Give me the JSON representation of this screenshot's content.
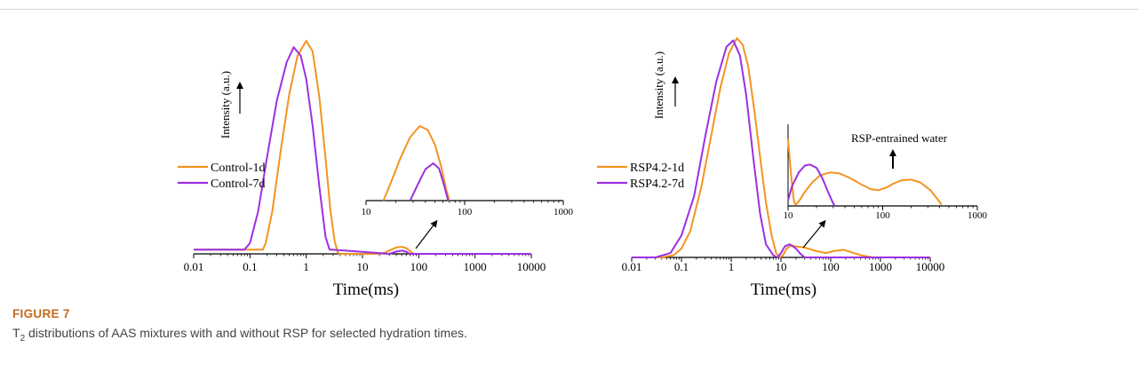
{
  "figure": {
    "label": "FIGURE 7",
    "caption_prefix": "T",
    "caption_sub": "2",
    "caption_rest": " distributions of AAS mixtures with and without RSP for selected hydration times."
  },
  "colors": {
    "orange": "#f39420",
    "purple": "#9b30e0",
    "axis": "#000000"
  },
  "chart_data": [
    {
      "type": "line",
      "title": "",
      "xlabel": "Time(ms)",
      "ylabel": "Intensity (a.u.)",
      "xscale": "log",
      "xlim": [
        0.01,
        10000
      ],
      "xticks": [
        "0.01",
        "0.1",
        "1",
        "10",
        "100",
        "1000",
        "10000"
      ],
      "grid": false,
      "legend_position": "middle-left",
      "series": [
        {
          "name": "Control-1d",
          "color": "orange",
          "x": [
            0.01,
            0.17,
            0.19,
            0.25,
            0.35,
            0.5,
            0.7,
            1.0,
            1.3,
            1.7,
            2.2,
            2.7,
            3.2,
            3.6,
            3.9,
            20,
            25,
            30,
            40,
            50,
            60,
            70,
            80,
            10000
          ],
          "y": [
            0.02,
            0.02,
            0.05,
            0.2,
            0.48,
            0.75,
            0.93,
            1.0,
            0.95,
            0.74,
            0.45,
            0.2,
            0.06,
            0.01,
            0.0,
            0.0,
            0.006,
            0.016,
            0.03,
            0.033,
            0.027,
            0.013,
            0.0,
            0.0
          ]
        },
        {
          "name": "Control-7d",
          "color": "purple",
          "x": [
            0.01,
            0.08,
            0.1,
            0.14,
            0.2,
            0.3,
            0.45,
            0.6,
            0.8,
            1.0,
            1.3,
            1.7,
            2.2,
            2.6,
            2.8,
            30,
            35,
            40,
            50,
            60,
            70,
            10000
          ],
          "y": [
            0.02,
            0.02,
            0.05,
            0.2,
            0.45,
            0.72,
            0.9,
            0.97,
            0.93,
            0.82,
            0.6,
            0.32,
            0.08,
            0.02,
            0.02,
            0.0,
            0.006,
            0.011,
            0.015,
            0.01,
            0.0,
            0.0
          ]
        }
      ],
      "annotations": [
        "arrow"
      ]
    },
    {
      "type": "line",
      "title": "",
      "xlabel": "Time(ms)",
      "ylabel": "Intensity (a.u.)",
      "xscale": "log",
      "xlim": [
        10,
        1000
      ],
      "xticks": [
        "10",
        "100",
        "1000"
      ],
      "inset": true,
      "series": [
        {
          "name": "Control-1d",
          "color": "orange",
          "x": [
            15,
            18,
            22,
            28,
            35,
            42,
            50,
            58,
            65,
            70
          ],
          "y": [
            0.0,
            0.25,
            0.55,
            0.85,
            1.0,
            0.95,
            0.75,
            0.45,
            0.15,
            0.0
          ]
        },
        {
          "name": "Control-7d",
          "color": "purple",
          "x": [
            28,
            33,
            40,
            48,
            55,
            62,
            68
          ],
          "y": [
            0.0,
            0.2,
            0.42,
            0.5,
            0.43,
            0.2,
            0.0
          ]
        }
      ]
    },
    {
      "type": "line",
      "title": "",
      "xlabel": "Time(ms)",
      "ylabel": "Intensity (a.u.)",
      "xscale": "log",
      "xlim": [
        0.01,
        10000
      ],
      "xticks": [
        "0.01",
        "0.1",
        "1",
        "10",
        "100",
        "1000",
        "10000"
      ],
      "grid": false,
      "legend_position": "middle-left",
      "series": [
        {
          "name": "RSP4.2-1d",
          "color": "orange",
          "x": [
            0.01,
            0.04,
            0.07,
            0.1,
            0.15,
            0.25,
            0.4,
            0.6,
            0.9,
            1.3,
            1.7,
            2.2,
            3,
            4,
            5,
            6.5,
            8,
            9.5,
            11,
            13,
            16,
            20,
            30,
            50,
            80,
            120,
            180,
            250,
            400,
            700,
            1000,
            10000
          ],
          "y": [
            0.0,
            0.0,
            0.01,
            0.04,
            0.12,
            0.32,
            0.56,
            0.77,
            0.93,
            1.0,
            0.97,
            0.87,
            0.65,
            0.42,
            0.25,
            0.1,
            0.02,
            0.0,
            0.01,
            0.04,
            0.055,
            0.05,
            0.045,
            0.03,
            0.02,
            0.03,
            0.035,
            0.025,
            0.01,
            0.0,
            0.0,
            0.0
          ]
        },
        {
          "name": "RSP4.2-7d",
          "color": "purple",
          "x": [
            0.01,
            0.03,
            0.06,
            0.1,
            0.18,
            0.3,
            0.5,
            0.8,
            1.1,
            1.5,
            2.0,
            2.8,
            3.8,
            5,
            7,
            8.5,
            10,
            12,
            15,
            20,
            25,
            30,
            40,
            10000
          ],
          "y": [
            0.0,
            0.0,
            0.02,
            0.1,
            0.28,
            0.55,
            0.8,
            0.96,
            0.99,
            0.92,
            0.74,
            0.45,
            0.2,
            0.06,
            0.01,
            0.0,
            0.02,
            0.05,
            0.06,
            0.04,
            0.015,
            0.0,
            0.0,
            0.0
          ]
        }
      ],
      "annotations": [
        "arrow"
      ]
    },
    {
      "type": "line",
      "title": "",
      "xlabel": "Time(ms)",
      "ylabel": "Intensity (a.u.)",
      "xscale": "log",
      "xlim": [
        10,
        1000
      ],
      "xticks": [
        "10",
        "100",
        "1000"
      ],
      "inset": true,
      "annotation_text": "RSP-entrained water",
      "series": [
        {
          "name": "RSP4.2-1d",
          "color": "orange",
          "x": [
            10,
            10.5,
            11,
            11.5,
            12,
            13,
            15,
            18,
            22,
            28,
            35,
            45,
            60,
            75,
            90,
            110,
            130,
            160,
            200,
            250,
            320,
            380,
            420
          ],
          "y": [
            1.2,
            0.75,
            0.4,
            0.1,
            0.02,
            0.08,
            0.25,
            0.42,
            0.55,
            0.6,
            0.58,
            0.5,
            0.38,
            0.3,
            0.28,
            0.33,
            0.4,
            0.46,
            0.47,
            0.42,
            0.28,
            0.12,
            0.02
          ]
        },
        {
          "name": "RSP4.2-7d",
          "color": "purple",
          "x": [
            10,
            11,
            13,
            15,
            17,
            20,
            23,
            26,
            29,
            31
          ],
          "y": [
            0.1,
            0.35,
            0.6,
            0.72,
            0.74,
            0.68,
            0.5,
            0.28,
            0.1,
            0.0
          ]
        }
      ]
    }
  ]
}
